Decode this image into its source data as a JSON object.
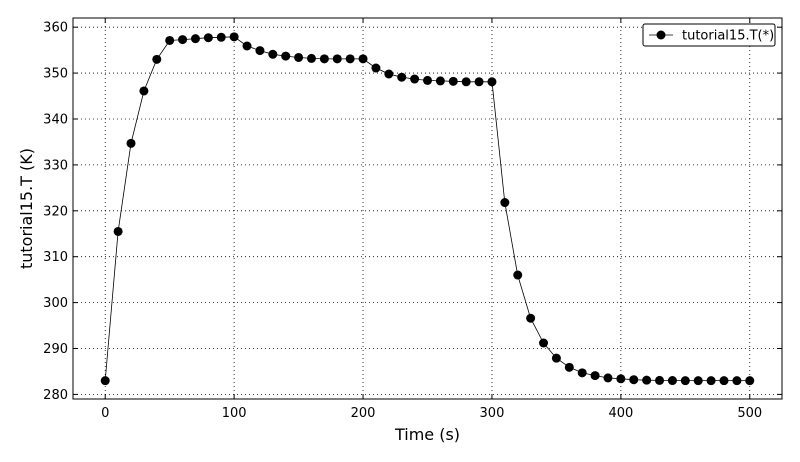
{
  "chart_data": {
    "type": "line",
    "xlabel": "Time (s)",
    "ylabel": "tutorial15.T (K)",
    "xlim": [
      -25,
      525
    ],
    "ylim": [
      279,
      362
    ],
    "xticks": [
      0,
      100,
      200,
      300,
      400,
      500
    ],
    "yticks": [
      280,
      290,
      300,
      310,
      320,
      330,
      340,
      350,
      360
    ],
    "grid": true,
    "legend_position": "top-right",
    "series": [
      {
        "name": "tutorial15.T(*)",
        "color": "#000000",
        "marker": "circle",
        "x": [
          0,
          10,
          20,
          30,
          40,
          50,
          60,
          70,
          80,
          90,
          100,
          110,
          120,
          130,
          140,
          150,
          160,
          170,
          180,
          190,
          200,
          210,
          220,
          230,
          240,
          250,
          260,
          270,
          280,
          290,
          300,
          310,
          320,
          330,
          340,
          350,
          360,
          370,
          380,
          390,
          400,
          410,
          420,
          430,
          440,
          450,
          460,
          470,
          480,
          490,
          500
        ],
        "y": [
          283,
          315.5,
          334.7,
          346.1,
          353,
          357.1,
          357.3,
          357.5,
          357.7,
          357.8,
          357.9,
          355.9,
          354.9,
          354.1,
          353.7,
          353.4,
          353.2,
          353.1,
          353.1,
          353.1,
          353.1,
          351.1,
          349.8,
          349.1,
          348.7,
          348.4,
          348.3,
          348.2,
          348.1,
          348.1,
          348.1,
          321.8,
          306,
          296.6,
          291.2,
          287.9,
          285.9,
          284.7,
          284.1,
          283.6,
          283.4,
          283.2,
          283.1,
          283.05,
          283.02,
          283,
          283,
          283,
          283,
          283,
          283
        ]
      }
    ]
  }
}
